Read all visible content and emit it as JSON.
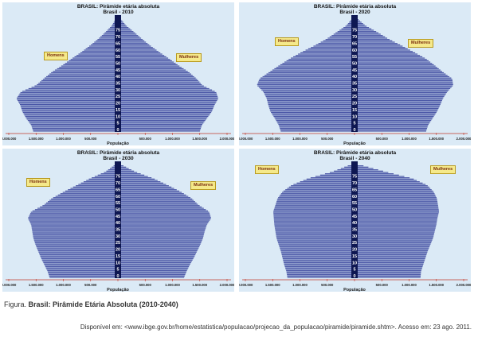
{
  "panels": [
    {
      "title": "BRASIL: Pirâmide etária absoluta",
      "subtitle": "Brasil - 2010",
      "men_label": "Homens",
      "women_label": "Mulheres",
      "xlabel": "População"
    },
    {
      "title": "BRASIL: Pirâmide etária absoluta",
      "subtitle": "Brasil - 2020",
      "men_label": "Homens",
      "women_label": "Mulheres",
      "xlabel": "População"
    },
    {
      "title": "BRASIL: Pirâmide etária absoluta",
      "subtitle": "Brasil - 2030",
      "men_label": "Homens",
      "women_label": "Mulheres",
      "xlabel": "População"
    },
    {
      "title": "BRASIL: Pirâmide etária absoluta",
      "subtitle": "Brasil - 2040",
      "men_label": "Homens",
      "women_label": "Mulheres",
      "xlabel": "População"
    }
  ],
  "caption": {
    "prefix": "Figura. ",
    "title": "Brasil: Pirâmide Etária Absoluta (2010-2040)"
  },
  "source": "Disponível em: <www.ibge.gov.br/home/estatistica/populacao/projecao_da_populacao/piramide/piramide.shtm>. Acesso em: 23 ago. 2011.",
  "colors": {
    "panel_bg": "#dbeaf6",
    "men_bar": "#4a56a6",
    "women_bar": "#4a56a6",
    "bar_line": "#c9cfe8",
    "center_axis": "#0e1752",
    "axis_red": "#c0392b",
    "legend_bg": "#f5e98a"
  },
  "chart_data": [
    {
      "type": "bar",
      "orientation": "horizontal-pyramid",
      "title": "BRASIL: Pirâmide etária absoluta",
      "subtitle": "Brasil - 2010",
      "xlabel": "População",
      "age_ticks": [
        "0",
        "5",
        "10",
        "15",
        "20",
        "25",
        "30",
        "35",
        "40",
        "45",
        "50",
        "55",
        "60",
        "65",
        "70",
        "75"
      ],
      "x_ticks": [
        "2.000.000",
        "1.500.000",
        "1.000.000",
        "500.000",
        "",
        "500.000",
        "1.000.000",
        "1.500.000",
        "2.000.000"
      ],
      "xlim": [
        -2000000,
        2000000
      ],
      "ages": [
        0,
        5,
        10,
        15,
        20,
        25,
        30,
        35,
        40,
        45,
        50,
        55,
        60,
        65,
        70,
        75,
        80
      ],
      "series": [
        {
          "name": "Homens",
          "values": [
            1520000,
            1560000,
            1650000,
            1720000,
            1760000,
            1830000,
            1750000,
            1470000,
            1330000,
            1180000,
            990000,
            820000,
            640000,
            480000,
            330000,
            200000,
            80000
          ]
        },
        {
          "name": "Mulheres",
          "values": [
            1470000,
            1510000,
            1600000,
            1690000,
            1740000,
            1810000,
            1770000,
            1520000,
            1410000,
            1270000,
            1080000,
            910000,
            730000,
            560000,
            410000,
            270000,
            120000
          ]
        }
      ]
    },
    {
      "type": "bar",
      "orientation": "horizontal-pyramid",
      "title": "BRASIL: Pirâmide etária absoluta",
      "subtitle": "Brasil - 2020",
      "xlabel": "População",
      "age_ticks": [
        "0",
        "5",
        "10",
        "15",
        "20",
        "25",
        "30",
        "35",
        "40",
        "45",
        "50",
        "55",
        "60",
        "65",
        "70",
        "75"
      ],
      "x_ticks": [
        "2.000.000",
        "1.500.000",
        "1.000.000",
        "500.000",
        "",
        "500.000",
        "1.000.000",
        "1.500.000",
        "2.000.000"
      ],
      "xlim": [
        -2000000,
        2000000
      ],
      "ages": [
        0,
        5,
        10,
        15,
        20,
        25,
        30,
        35,
        40,
        45,
        50,
        55,
        60,
        65,
        70,
        75,
        80
      ],
      "series": [
        {
          "name": "Homens",
          "values": [
            1320000,
            1360000,
            1430000,
            1510000,
            1550000,
            1580000,
            1640000,
            1760000,
            1710000,
            1530000,
            1350000,
            1160000,
            940000,
            700000,
            480000,
            300000,
            120000
          ]
        },
        {
          "name": "Mulheres",
          "values": [
            1280000,
            1320000,
            1400000,
            1480000,
            1540000,
            1590000,
            1670000,
            1780000,
            1760000,
            1590000,
            1440000,
            1280000,
            1060000,
            830000,
            590000,
            390000,
            170000
          ]
        }
      ]
    },
    {
      "type": "bar",
      "orientation": "horizontal-pyramid",
      "title": "BRASIL: Pirâmide etária absoluta",
      "subtitle": "Brasil - 2030",
      "xlabel": "População",
      "age_ticks": [
        "0",
        "5",
        "10",
        "15",
        "20",
        "25",
        "30",
        "35",
        "40",
        "45",
        "50",
        "55",
        "60",
        "65",
        "70",
        "75"
      ],
      "x_ticks": [
        "2.000.000",
        "1.500.000",
        "1.000.000",
        "500.000",
        "",
        "500.000",
        "1.000.000",
        "1.500.000",
        "2.000.000"
      ],
      "xlim": [
        -2000000,
        2000000
      ],
      "ages": [
        0,
        5,
        10,
        15,
        20,
        25,
        30,
        35,
        40,
        45,
        50,
        55,
        60,
        65,
        70,
        75,
        80
      ],
      "series": [
        {
          "name": "Homens",
          "values": [
            1220000,
            1260000,
            1320000,
            1380000,
            1430000,
            1480000,
            1520000,
            1540000,
            1560000,
            1620000,
            1560000,
            1330000,
            1180000,
            960000,
            720000,
            480000,
            200000
          ]
        },
        {
          "name": "Mulheres",
          "values": [
            1180000,
            1230000,
            1290000,
            1360000,
            1420000,
            1480000,
            1530000,
            1560000,
            1600000,
            1680000,
            1640000,
            1450000,
            1320000,
            1120000,
            880000,
            620000,
            290000
          ]
        }
      ]
    },
    {
      "type": "bar",
      "orientation": "horizontal-pyramid",
      "title": "BRASIL: Pirâmide etária absoluta",
      "subtitle": "Brasil - 2040",
      "xlabel": "População",
      "age_ticks": [
        "0",
        "5",
        "10",
        "15",
        "20",
        "25",
        "30",
        "35",
        "40",
        "45",
        "50",
        "55",
        "60",
        "65",
        "70",
        "75"
      ],
      "x_ticks": [
        "2.000.000",
        "1.500.000",
        "1.000.000",
        "500.000",
        "",
        "500.000",
        "1.000.000",
        "1.500.000",
        "2.000.000"
      ],
      "xlim": [
        -2000000,
        2000000
      ],
      "ages": [
        0,
        5,
        10,
        15,
        20,
        25,
        30,
        35,
        40,
        45,
        50,
        55,
        60,
        65,
        70,
        75,
        80
      ],
      "series": [
        {
          "name": "Homens",
          "values": [
            1200000,
            1220000,
            1260000,
            1290000,
            1320000,
            1360000,
            1400000,
            1420000,
            1440000,
            1450000,
            1460000,
            1420000,
            1380000,
            1290000,
            1120000,
            820000,
            380000
          ]
        },
        {
          "name": "Mulheres",
          "values": [
            1180000,
            1190000,
            1230000,
            1270000,
            1310000,
            1360000,
            1410000,
            1440000,
            1470000,
            1490000,
            1520000,
            1500000,
            1480000,
            1420000,
            1300000,
            1030000,
            540000
          ]
        }
      ]
    }
  ]
}
